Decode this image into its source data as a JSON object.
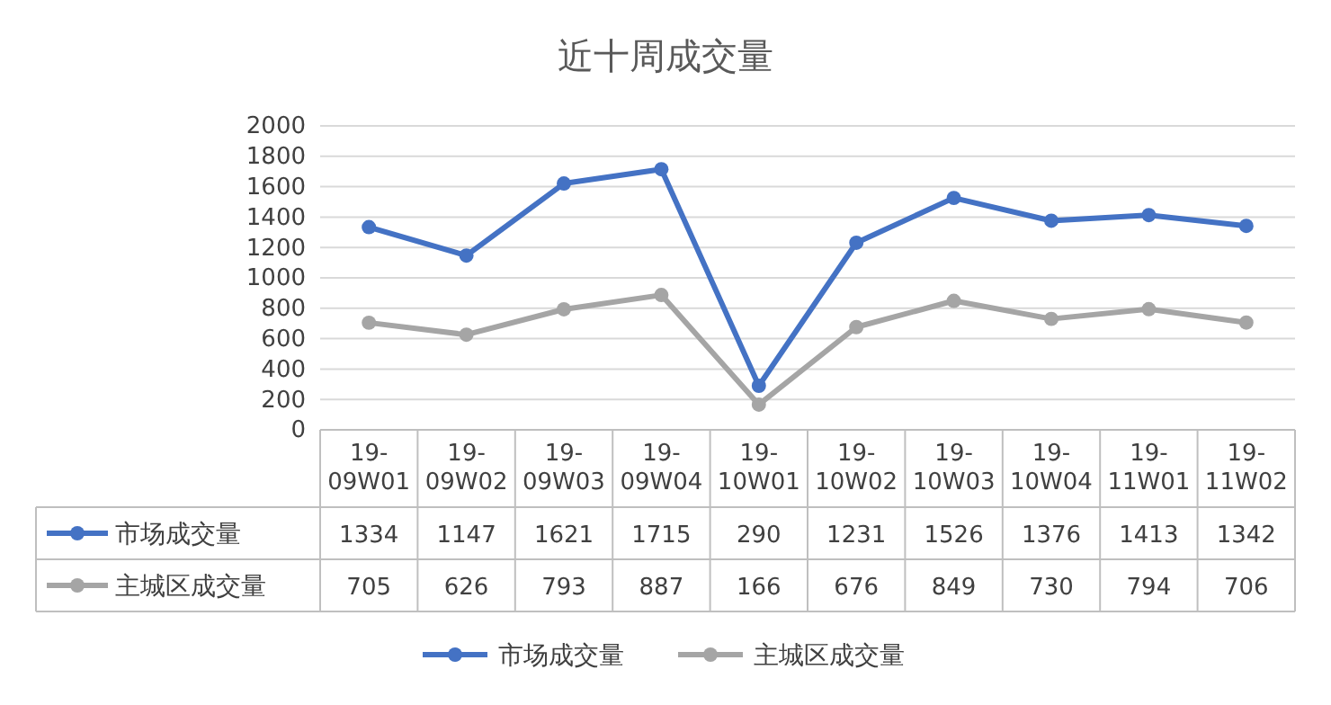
{
  "chart_data": {
    "type": "line",
    "title": "近十周成交量",
    "categories": [
      "19-09W01",
      "19-09W02",
      "19-09W03",
      "19-09W04",
      "19-10W01",
      "19-10W02",
      "19-10W03",
      "19-10W04",
      "19-11W01",
      "19-11W02"
    ],
    "series": [
      {
        "name": "市场成交量",
        "color": "#4472c4",
        "values": [
          1334,
          1147,
          1621,
          1715,
          290,
          1231,
          1526,
          1376,
          1413,
          1342
        ]
      },
      {
        "name": "主城区成交量",
        "color": "#a5a5a5",
        "values": [
          705,
          626,
          793,
          887,
          166,
          676,
          849,
          730,
          794,
          706
        ]
      }
    ],
    "ylim": [
      0,
      2000
    ],
    "yticks": [
      0,
      200,
      400,
      600,
      800,
      1000,
      1200,
      1400,
      1600,
      1800,
      2000
    ],
    "grid": "y",
    "marker": "circle",
    "line_style": "solid",
    "data_labels": true,
    "legend": "bottom"
  }
}
